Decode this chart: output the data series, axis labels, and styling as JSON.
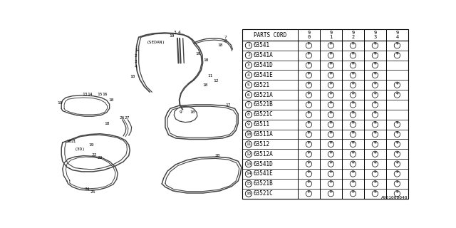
{
  "footer_code": "A901000040",
  "rows": [
    {
      "num": "1",
      "code": "63541",
      "marks": [
        true,
        true,
        true,
        true,
        true
      ]
    },
    {
      "num": "2",
      "code": "63541A",
      "marks": [
        true,
        true,
        true,
        true,
        true
      ]
    },
    {
      "num": "3",
      "code": "63541D",
      "marks": [
        true,
        true,
        true,
        true,
        false
      ]
    },
    {
      "num": "4",
      "code": "63541E",
      "marks": [
        true,
        true,
        true,
        true,
        false
      ]
    },
    {
      "num": "5",
      "code": "63521",
      "marks": [
        true,
        true,
        true,
        true,
        true
      ]
    },
    {
      "num": "6",
      "code": "63521A",
      "marks": [
        true,
        true,
        true,
        true,
        true
      ]
    },
    {
      "num": "7",
      "code": "63521B",
      "marks": [
        true,
        true,
        true,
        true,
        false
      ]
    },
    {
      "num": "8",
      "code": "63521C",
      "marks": [
        true,
        true,
        true,
        true,
        false
      ]
    },
    {
      "num": "9",
      "code": "63511",
      "marks": [
        true,
        true,
        true,
        true,
        true
      ]
    },
    {
      "num": "10",
      "code": "63511A",
      "marks": [
        true,
        true,
        true,
        true,
        true
      ]
    },
    {
      "num": "11",
      "code": "63512",
      "marks": [
        true,
        true,
        true,
        true,
        true
      ]
    },
    {
      "num": "12",
      "code": "63512A",
      "marks": [
        true,
        true,
        true,
        true,
        true
      ]
    },
    {
      "num": "13",
      "code": "63541D",
      "marks": [
        true,
        true,
        true,
        true,
        true
      ]
    },
    {
      "num": "14",
      "code": "63541E",
      "marks": [
        true,
        true,
        true,
        true,
        true
      ]
    },
    {
      "num": "15",
      "code": "63521B",
      "marks": [
        true,
        true,
        true,
        true,
        true
      ]
    },
    {
      "num": "16",
      "code": "63521C",
      "marks": [
        true,
        true,
        true,
        true,
        true
      ]
    }
  ],
  "bg_color": "#ffffff"
}
